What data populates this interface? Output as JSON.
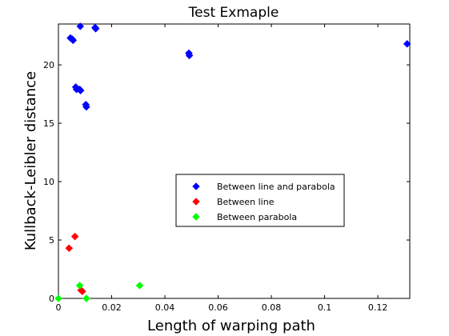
{
  "chart_data": {
    "type": "scatter",
    "title": "Test Exmaple",
    "xlabel": "Length of warping path",
    "ylabel": "Kullback-Leibler distance",
    "xlim": [
      0,
      0.132
    ],
    "ylim": [
      0,
      23.5
    ],
    "xticks": [
      0,
      0.02,
      0.04,
      0.06,
      0.08,
      0.1,
      0.12
    ],
    "xtick_labels": [
      "0",
      "0.02",
      "0.04",
      "0.06",
      "0.08",
      "0.1",
      "0.12"
    ],
    "yticks": [
      0,
      5,
      10,
      15,
      20
    ],
    "ytick_labels": [
      "0",
      "5",
      "10",
      "15",
      "20"
    ],
    "grid": false,
    "legend_position": "center-right",
    "marker": "diamond",
    "series": [
      {
        "name": "Between line and parabola",
        "color": "#0000ff",
        "points": [
          [
            0.0045,
            22.3
          ],
          [
            0.0052,
            22.2
          ],
          [
            0.0055,
            22.1
          ],
          [
            0.0082,
            23.3
          ],
          [
            0.0138,
            23.2
          ],
          [
            0.014,
            23.1
          ],
          [
            0.0065,
            18.1
          ],
          [
            0.0068,
            17.9
          ],
          [
            0.008,
            17.9
          ],
          [
            0.0083,
            17.8
          ],
          [
            0.0103,
            16.6
          ],
          [
            0.0105,
            16.4
          ],
          [
            0.049,
            21.0
          ],
          [
            0.0492,
            20.8
          ],
          [
            0.131,
            21.8
          ]
        ]
      },
      {
        "name": "Between line",
        "color": "#ff0000",
        "points": [
          [
            0.004,
            4.3
          ],
          [
            0.0062,
            5.3
          ],
          [
            0.0085,
            0.7
          ],
          [
            0.009,
            0.6
          ]
        ]
      },
      {
        "name": "Between parabola",
        "color": "#00ff00",
        "points": [
          [
            0.0,
            0.0
          ],
          [
            0.008,
            1.1
          ],
          [
            0.0305,
            1.1
          ],
          [
            0.0105,
            0.0
          ]
        ]
      }
    ]
  }
}
